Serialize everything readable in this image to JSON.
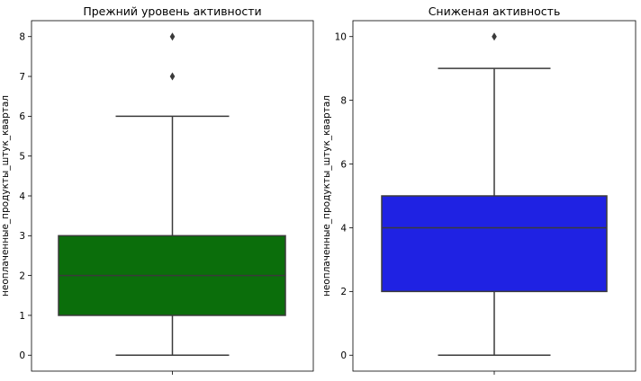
{
  "chart_data": [
    {
      "type": "box",
      "title": "Прежний уровень активности",
      "xlabel": "",
      "ylabel": "неоплаченные_продукты_штук_квартал",
      "ylim": [
        -0.4,
        8.4
      ],
      "yticks": [
        0,
        1,
        2,
        3,
        4,
        5,
        6,
        7,
        8
      ],
      "color": "#0b6e0b",
      "box": {
        "whisker_low": 0,
        "q1": 1,
        "median": 2,
        "q3": 3,
        "whisker_high": 6
      },
      "outliers": [
        7,
        8
      ]
    },
    {
      "type": "box",
      "title": "Сниженая активность",
      "xlabel": "",
      "ylabel": "неоплаченные_продукты_штук_квартал",
      "ylim": [
        -0.5,
        10.5
      ],
      "yticks": [
        0,
        2,
        4,
        6,
        8,
        10
      ],
      "color": "#1f22e3",
      "box": {
        "whisker_low": 0,
        "q1": 2,
        "median": 4,
        "q3": 5,
        "whisker_high": 9
      },
      "outliers": [
        10
      ]
    }
  ]
}
